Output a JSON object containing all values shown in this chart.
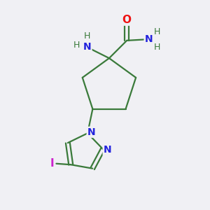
{
  "background_color": "#f0f0f4",
  "bond_color": "#3a7a3a",
  "atom_colors": {
    "O": "#ee1111",
    "N": "#2222dd",
    "I": "#cc22cc",
    "H": "#3a7a3a",
    "C": "#3a7a3a"
  },
  "figsize": [
    3.0,
    3.0
  ],
  "dpi": 100,
  "lw": 1.6
}
